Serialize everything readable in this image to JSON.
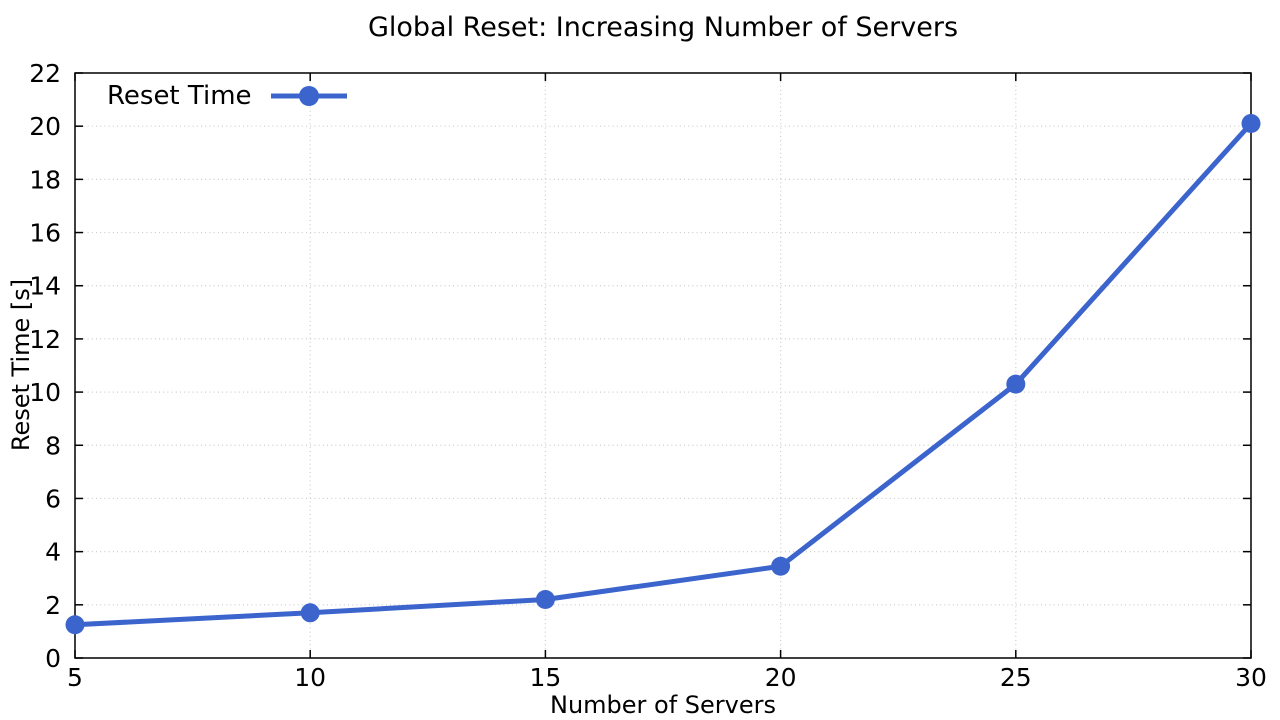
{
  "colors": {
    "background": "#ffffff",
    "text": "#000000",
    "grid": "#cccccc",
    "border": "#000000",
    "accent": "#3c64cd"
  },
  "chart_data": {
    "type": "line",
    "title": "Global Reset: Increasing Number of Servers",
    "xlabel": "Number of Servers",
    "ylabel": "Reset Time [s]",
    "xlim": [
      5,
      30
    ],
    "ylim": [
      0,
      22
    ],
    "x_ticks": [
      5,
      10,
      15,
      20,
      25,
      30
    ],
    "y_ticks": [
      0,
      2,
      4,
      6,
      8,
      10,
      12,
      14,
      16,
      18,
      20,
      22
    ],
    "grid": "dotted",
    "legend_position": "top-left-inside",
    "series": [
      {
        "name": "Reset Time",
        "x": [
          5,
          10,
          15,
          20,
          25,
          30
        ],
        "y": [
          1.25,
          1.7,
          2.2,
          3.45,
          10.3,
          20.1
        ],
        "color": "#3c64cd",
        "marker": "circle",
        "marker_size": 9.5,
        "line_width": 5
      }
    ]
  }
}
